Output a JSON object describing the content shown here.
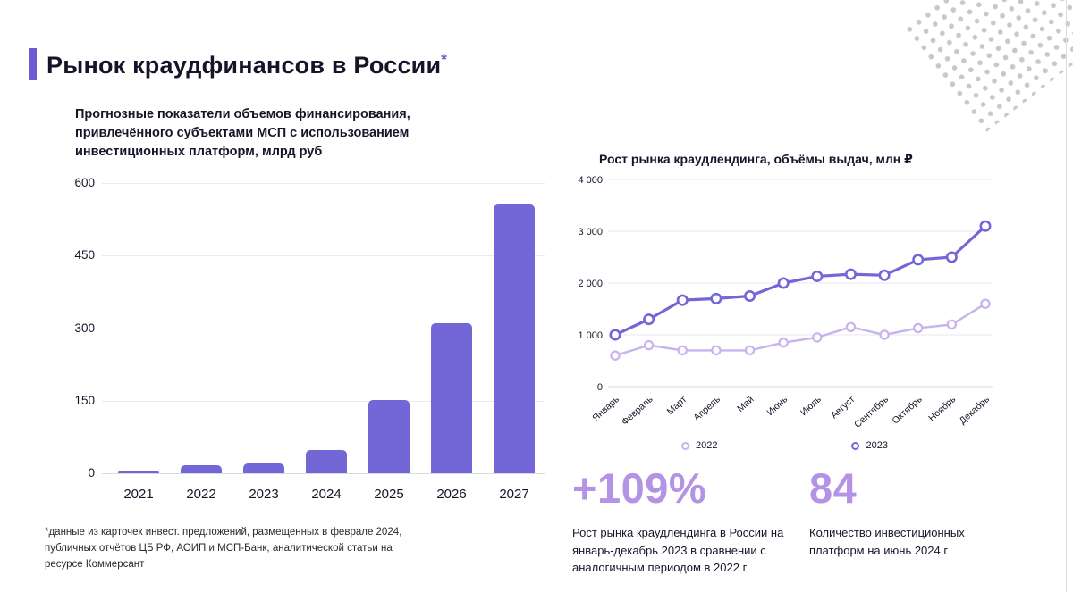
{
  "slide": {
    "title": "Рынок краудфинансов в России",
    "asterisk": "*"
  },
  "colors": {
    "accent": "#6C5BD4",
    "stat": "#B393E5",
    "gridline": "#e9e9f1"
  },
  "chart_data": [
    {
      "type": "bar",
      "title": "Прогнозные показатели объемов финансирования, привлечённого субъектами МСП с использованием инвестиционных платформ, млрд руб",
      "categories": [
        "2021",
        "2022",
        "2023",
        "2024",
        "2025",
        "2026",
        "2027"
      ],
      "values": [
        5,
        17,
        20,
        48,
        152,
        310,
        555
      ],
      "ylim": [
        0,
        600
      ],
      "yticks": [
        0,
        150,
        300,
        450,
        600
      ],
      "bar_color": "#7367D8",
      "grid": true,
      "ylabel": "млрд руб"
    },
    {
      "type": "line",
      "title": "Рост рынка краудлендинга, объёмы выдач, млн ₽",
      "categories": [
        "Январь",
        "Февраль",
        "Март",
        "Апрель",
        "Май",
        "Июнь",
        "Июль",
        "Август",
        "Сентябрь",
        "Октябрь",
        "Ноябрь",
        "Декабрь"
      ],
      "series": [
        {
          "name": "2022",
          "color": "#C7B3EE",
          "values": [
            600,
            800,
            700,
            700,
            700,
            850,
            950,
            1150,
            1000,
            1130,
            1200,
            1600
          ]
        },
        {
          "name": "2023",
          "color": "#7367D8",
          "values": [
            1000,
            1300,
            1670,
            1700,
            1750,
            2000,
            2130,
            2170,
            2150,
            2450,
            2500,
            3100
          ]
        }
      ],
      "ylim": [
        0,
        4000
      ],
      "yticks": [
        0,
        1000,
        2000,
        3000,
        4000
      ],
      "grid": true,
      "legend_position": "bottom"
    }
  ],
  "footnote": "*данные из карточек инвест. предложений, размещенных в феврале 2024, публичных отчётов ЦБ РФ, АОИП и МСП-Банк, аналитической статьи на ресурсе Коммерсант",
  "stats": [
    {
      "value": "+109%",
      "description": "Рост рынка краудлендинга в России на январь-декабрь 2023 в сравнении с аналогичным периодом в 2022 г"
    },
    {
      "value": "84",
      "description": "Количество инвестиционных платформ на июнь 2024 г"
    }
  ]
}
